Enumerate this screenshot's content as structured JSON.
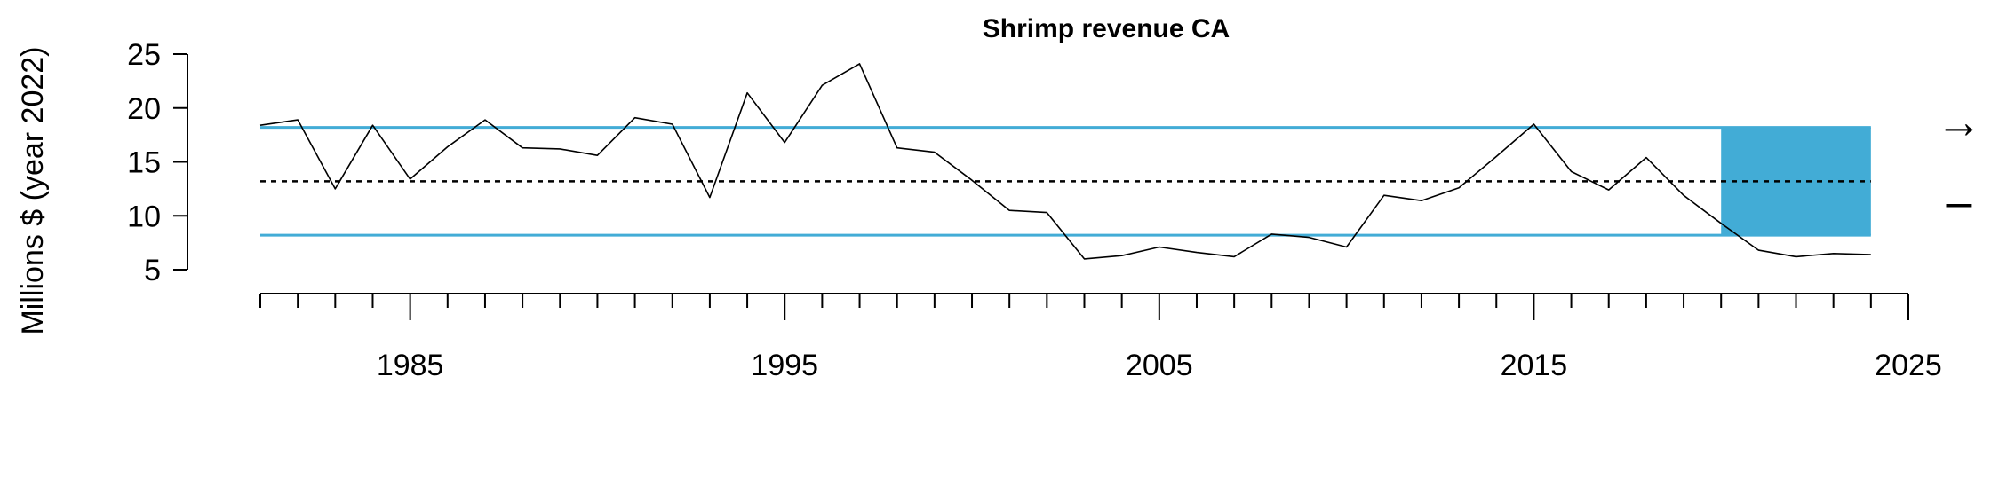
{
  "chart_data": {
    "type": "line",
    "title": "Shrimp revenue CA",
    "ylabel": "Millions $ (year 2022)",
    "xlabel": "",
    "xlim": [
      1981,
      2025
    ],
    "ylim": [
      5,
      25
    ],
    "x_ticks": [
      1985,
      1995,
      2005,
      2015,
      2025
    ],
    "y_ticks": [
      5,
      10,
      15,
      20,
      25
    ],
    "grid": false,
    "series": [
      {
        "x": [
          1981,
          1982,
          1983,
          1984,
          1985,
          1986,
          1987,
          1988,
          1989,
          1990,
          1991,
          1992,
          1993,
          1994,
          1995,
          1996,
          1997,
          1998,
          1999,
          2000,
          2001,
          2002,
          2003,
          2004,
          2005,
          2006,
          2007,
          2008,
          2009,
          2010,
          2011,
          2012,
          2013,
          2014,
          2015,
          2016,
          2017,
          2018,
          2019,
          2020,
          2021,
          2022,
          2023,
          2024
        ],
        "y": [
          18.4,
          18.9,
          12.5,
          18.4,
          13.4,
          16.4,
          18.9,
          16.3,
          16.2,
          15.6,
          19.1,
          18.5,
          11.7,
          21.4,
          16.8,
          22.1,
          24.1,
          16.3,
          15.9,
          13.3,
          10.5,
          10.3,
          6.0,
          6.3,
          7.1,
          6.6,
          6.2,
          8.3,
          8.0,
          7.1,
          11.9,
          11.4,
          12.6,
          15.5,
          18.5,
          14.1,
          12.4,
          15.4,
          11.9,
          9.3,
          6.8,
          6.2,
          6.5,
          6.4
        ]
      }
    ],
    "mean": 13.2,
    "upper_sd": 18.2,
    "lower_sd": 8.2,
    "recent_window": [
      2020,
      2024
    ],
    "trend_symbol": "→",
    "mean_symbol": "–",
    "colors": {
      "band": "#42acd6",
      "line": "#000000"
    }
  }
}
